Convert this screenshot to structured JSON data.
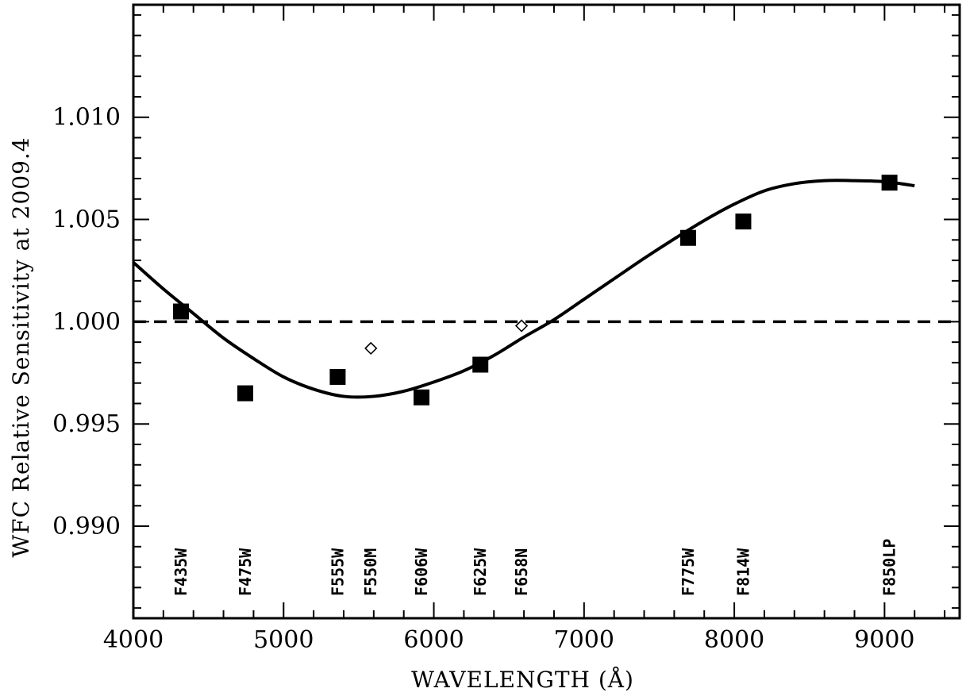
{
  "chart_data": {
    "type": "scatter",
    "title": "",
    "xlabel": "WAVELENGTH (Å)",
    "ylabel": "WFC Relative Sensitivity at 2009.4",
    "xlim": [
      4000,
      9500
    ],
    "ylim": [
      0.9855,
      1.0155
    ],
    "x_ticks": [
      4000,
      5000,
      6000,
      7000,
      8000,
      9000
    ],
    "x_tick_labels": [
      "4000",
      "5000",
      "6000",
      "7000",
      "8000",
      "9000"
    ],
    "y_ticks": [
      0.99,
      0.995,
      1.0,
      1.005,
      1.01
    ],
    "y_tick_labels": [
      "0.990",
      "0.995",
      "1.000",
      "1.005",
      "1.010"
    ],
    "grid": false,
    "reference_line": {
      "y": 1.0,
      "style": "dashed"
    },
    "fit_curve": {
      "style": "solid",
      "x": [
        4000,
        4200,
        4400,
        4600,
        4800,
        5000,
        5200,
        5400,
        5600,
        5800,
        6000,
        6200,
        6400,
        6600,
        6800,
        7000,
        7200,
        7400,
        7600,
        7800,
        8000,
        8200,
        8400,
        8600,
        8800,
        9000,
        9200
      ],
      "y": [
        1.0029,
        1.0016,
        1.0004,
        0.9992,
        0.9982,
        0.9973,
        0.9967,
        0.99635,
        0.99635,
        0.9966,
        0.99705,
        0.9976,
        0.99835,
        0.99925,
        1.0001,
        1.0011,
        1.0021,
        1.0031,
        1.00405,
        1.00495,
        1.00575,
        1.0064,
        1.00675,
        1.0069,
        1.0069,
        1.00685,
        1.00665
      ]
    },
    "series": [
      {
        "marker": "filled-square",
        "points": [
          {
            "label": "F435W",
            "x": 4317,
            "y": 1.0005
          },
          {
            "label": "F475W",
            "x": 4745,
            "y": 0.9965
          },
          {
            "label": "F555W",
            "x": 5360,
            "y": 0.9973
          },
          {
            "label": "F606W",
            "x": 5918,
            "y": 0.9963
          },
          {
            "label": "F625W",
            "x": 6310,
            "y": 0.9979
          },
          {
            "label": "F775W",
            "x": 7693,
            "y": 1.0041
          },
          {
            "label": "F814W",
            "x": 8060,
            "y": 1.0049
          },
          {
            "label": "F850LP",
            "x": 9033,
            "y": 1.0068
          }
        ]
      },
      {
        "marker": "open-diamond",
        "points": [
          {
            "label": "F550M",
            "x": 5581,
            "y": 0.9987
          },
          {
            "label": "F658N",
            "x": 6584,
            "y": 0.9998
          }
        ]
      }
    ],
    "filter_labels": [
      {
        "text": "F435W",
        "x": 4317
      },
      {
        "text": "F475W",
        "x": 4745
      },
      {
        "text": "F555W",
        "x": 5360
      },
      {
        "text": "F550M",
        "x": 5581
      },
      {
        "text": "F606W",
        "x": 5918
      },
      {
        "text": "F625W",
        "x": 6310
      },
      {
        "text": "F658N",
        "x": 6584
      },
      {
        "text": "F775W",
        "x": 7693
      },
      {
        "text": "F814W",
        "x": 8060
      },
      {
        "text": "F850LP",
        "x": 9033
      }
    ]
  }
}
